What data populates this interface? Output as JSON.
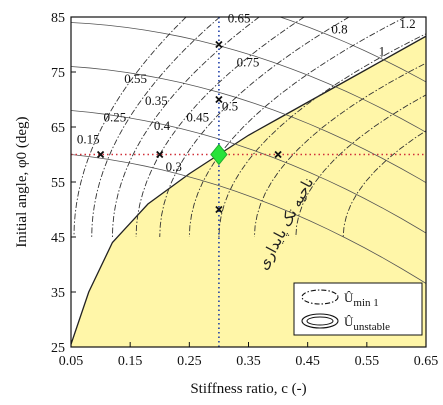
{
  "chart_data": {
    "type": "line",
    "xlabel": "Stiffness ratio,  c (-)",
    "ylabel": "Initial angle, φ0 (deg)",
    "xlim": [
      0.05,
      0.65
    ],
    "ylim": [
      25,
      85
    ],
    "xticks": [
      "0.05",
      "0.15",
      "0.25",
      "0.35",
      "0.45",
      "0.55",
      "0.65"
    ],
    "yticks": [
      "25",
      "35",
      "45",
      "55",
      "65",
      "75",
      "85"
    ],
    "grid": false,
    "stable_region": {
      "label": "ناحیه تک پایداری",
      "fill": "#fff6a8",
      "boundary": [
        [
          0.05,
          25.5
        ],
        [
          0.08,
          35
        ],
        [
          0.12,
          44
        ],
        [
          0.18,
          51
        ],
        [
          0.25,
          56.5
        ],
        [
          0.3,
          60
        ],
        [
          0.35,
          63.5
        ],
        [
          0.4,
          66.5
        ],
        [
          0.45,
          69.5
        ],
        [
          0.5,
          72.5
        ],
        [
          0.55,
          75.5
        ],
        [
          0.6,
          78.5
        ],
        [
          0.65,
          81.5
        ]
      ]
    },
    "contour_labels_u_min": [
      {
        "text": "0.15",
        "x": 0.06,
        "y": 62
      },
      {
        "text": "0.25",
        "x": 0.105,
        "y": 66
      },
      {
        "text": "0.3",
        "x": 0.21,
        "y": 57
      },
      {
        "text": "0.35",
        "x": 0.175,
        "y": 69
      },
      {
        "text": "0.4",
        "x": 0.19,
        "y": 64.5
      },
      {
        "text": "0.45",
        "x": 0.245,
        "y": 66
      },
      {
        "text": "0.5",
        "x": 0.305,
        "y": 68
      },
      {
        "text": "0.55",
        "x": 0.14,
        "y": 73
      },
      {
        "text": "0.65",
        "x": 0.315,
        "y": 84
      },
      {
        "text": "0.75",
        "x": 0.33,
        "y": 76
      }
    ],
    "contour_labels_u_unstable": [
      {
        "text": "0.8",
        "x": 0.49,
        "y": 82
      },
      {
        "text": "1",
        "x": 0.57,
        "y": 78
      },
      {
        "text": "1.2",
        "x": 0.605,
        "y": 83
      }
    ],
    "reference_lines": {
      "vertical_x": 0.3,
      "horizontal_y": 60,
      "color_vertical": "#1f3fa8",
      "color_horizontal": "#d0303a"
    },
    "sample_points": [
      {
        "x": 0.3,
        "y": 80
      },
      {
        "x": 0.3,
        "y": 70
      },
      {
        "x": 0.3,
        "y": 50
      },
      {
        "x": 0.1,
        "y": 60
      },
      {
        "x": 0.2,
        "y": 60
      },
      {
        "x": 0.4,
        "y": 60
      }
    ],
    "highlight_point": {
      "x": 0.3,
      "y": 60,
      "color": "#27e33a"
    },
    "legend": {
      "placement": "bottom-right",
      "entries": [
        {
          "style": "dash-dot",
          "label_main": "Û",
          "label_sub": "min 1"
        },
        {
          "style": "solid",
          "label_main": "Û",
          "label_sub": "unstable"
        }
      ]
    }
  }
}
